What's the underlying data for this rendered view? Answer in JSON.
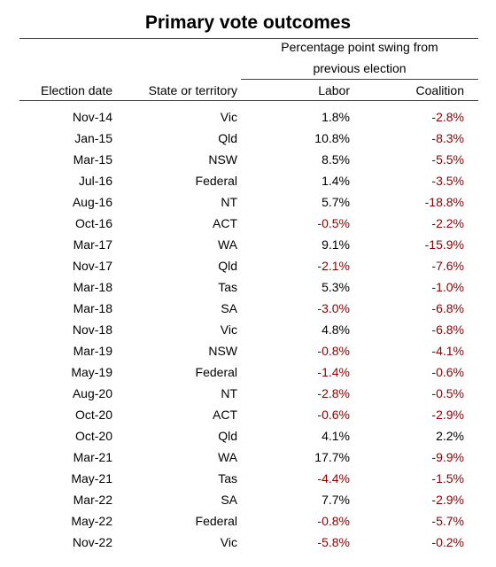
{
  "table": {
    "title": "Primary vote outcomes",
    "group_header": [
      "Percentage point swing from",
      "previous election"
    ],
    "columns": [
      "Election date",
      "State or territory",
      "Labor",
      "Coalition"
    ],
    "rows": [
      [
        "Nov-14",
        "Vic",
        "1.8%",
        "-2.8%"
      ],
      [
        "Jan-15",
        "Qld",
        "10.8%",
        "-8.3%"
      ],
      [
        "Mar-15",
        "NSW",
        "8.5%",
        "-5.5%"
      ],
      [
        "Jul-16",
        "Federal",
        "1.4%",
        "-3.5%"
      ],
      [
        "Aug-16",
        "NT",
        "5.7%",
        "-18.8%"
      ],
      [
        "Oct-16",
        "ACT",
        "-0.5%",
        "-2.2%"
      ],
      [
        "Mar-17",
        "WA",
        "9.1%",
        "-15.9%"
      ],
      [
        "Nov-17",
        "Qld",
        "-2.1%",
        "-7.6%"
      ],
      [
        "Mar-18",
        "Tas",
        "5.3%",
        "-1.0%"
      ],
      [
        "Mar-18",
        "SA",
        "-3.0%",
        "-6.8%"
      ],
      [
        "Nov-18",
        "Vic",
        "4.8%",
        "-6.8%"
      ],
      [
        "Mar-19",
        "NSW",
        "-0.8%",
        "-4.1%"
      ],
      [
        "May-19",
        "Federal",
        "-1.4%",
        "-0.6%"
      ],
      [
        "Aug-20",
        "NT",
        "-2.8%",
        "-0.5%"
      ],
      [
        "Oct-20",
        "ACT",
        "-0.6%",
        "-2.9%"
      ],
      [
        "Oct-20",
        "Qld",
        "4.1%",
        "2.2%"
      ],
      [
        "Mar-21",
        "WA",
        "17.7%",
        "-9.9%"
      ],
      [
        "May-21",
        "Tas",
        "-4.4%",
        "-1.5%"
      ],
      [
        "Mar-22",
        "SA",
        "7.7%",
        "-2.9%"
      ],
      [
        "May-22",
        "Federal",
        "-0.8%",
        "-5.7%"
      ],
      [
        "Nov-22",
        "Vic",
        "-5.8%",
        "-0.2%"
      ]
    ]
  }
}
